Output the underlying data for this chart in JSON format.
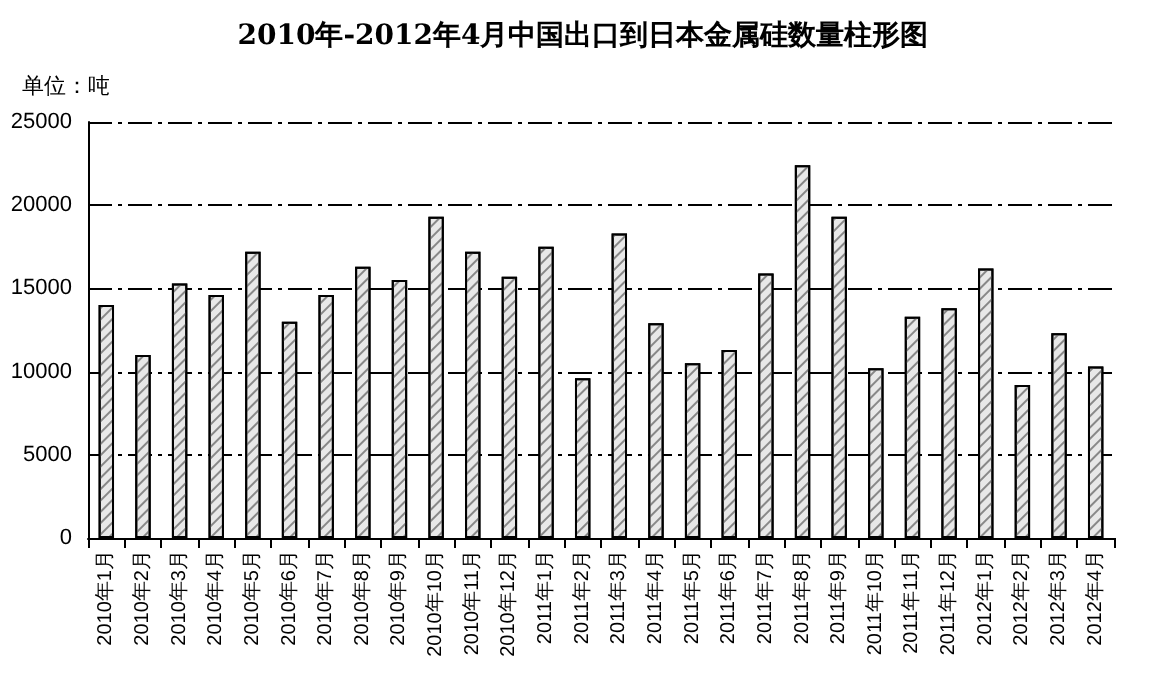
{
  "chart_data": {
    "type": "bar",
    "title": "2010年-2012年4月中国出口到日本金属硅数量柱形图",
    "ylabel": "单位：吨",
    "categories": [
      "2010年1月",
      "2010年2月",
      "2010年3月",
      "2010年4月",
      "2010年5月",
      "2010年6月",
      "2010年7月",
      "2010年8月",
      "2010年9月",
      "2010年10月",
      "2010年11月",
      "2010年12月",
      "2011年1月",
      "2011年2月",
      "2011年3月",
      "2011年4月",
      "2011年5月",
      "2011年6月",
      "2011年7月",
      "2011年8月",
      "2011年9月",
      "2011年10月",
      "2011年11月",
      "2011年12月",
      "2012年1月",
      "2012年2月",
      "2012年3月",
      "2012年4月"
    ],
    "values": [
      14000,
      11000,
      15300,
      14600,
      17200,
      13000,
      14600,
      16300,
      15500,
      19300,
      17200,
      15700,
      17500,
      9600,
      18300,
      12900,
      10500,
      11300,
      15900,
      22400,
      19300,
      10200,
      13300,
      13800,
      16200,
      9200,
      12300,
      10300
    ],
    "color": "#e8e8e8",
    "ylim": [
      0,
      25000
    ],
    "yticks": [
      0,
      5000,
      10000,
      15000,
      20000,
      25000
    ],
    "grid": "y"
  }
}
